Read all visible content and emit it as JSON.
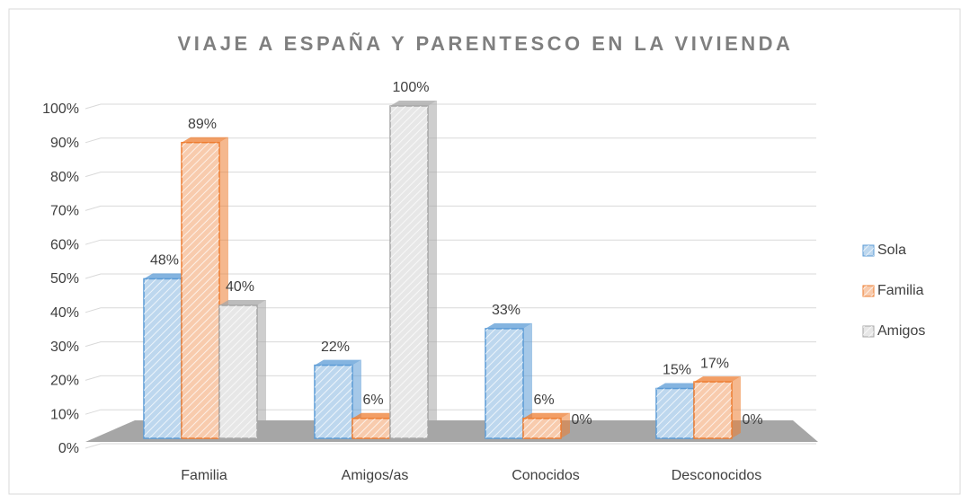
{
  "chart_data": {
    "type": "bar3d",
    "title": "VIAJE A ESPAÑA Y PARENTESCO EN LA VIVIENDA",
    "categories": [
      "Familia",
      "Amigos/as",
      "Conocidos",
      "Desconocidos"
    ],
    "series": [
      {
        "name": "Sola",
        "color": "#bdd7ee",
        "edgecolor": "#5b9bd5",
        "values": [
          48,
          22,
          33,
          15
        ],
        "value_labels": [
          "48%",
          "22%",
          "33%",
          "15%"
        ]
      },
      {
        "name": "Familia",
        "color": "#f8cbad",
        "edgecolor": "#ed7d31",
        "values": [
          89,
          6,
          6,
          17
        ],
        "value_labels": [
          "89%",
          "6%",
          "6%",
          "17%"
        ]
      },
      {
        "name": "Amigos",
        "color": "#e7e7e7",
        "edgecolor": "#a5a5a5",
        "values": [
          40,
          100,
          0,
          0
        ],
        "value_labels": [
          "40%",
          "100%",
          "0%",
          "0%"
        ]
      }
    ],
    "ylim": [
      0,
      100
    ],
    "yticks": [
      {
        "value": 0,
        "label": "0%"
      },
      {
        "value": 10,
        "label": "10%"
      },
      {
        "value": 20,
        "label": "20%"
      },
      {
        "value": 30,
        "label": "30%"
      },
      {
        "value": 40,
        "label": "40%"
      },
      {
        "value": 50,
        "label": "50%"
      },
      {
        "value": 60,
        "label": "60%"
      },
      {
        "value": 70,
        "label": "70%"
      },
      {
        "value": 80,
        "label": "80%"
      },
      {
        "value": 90,
        "label": "90%"
      },
      {
        "value": 100,
        "label": "100%"
      }
    ],
    "grid": true,
    "legend": "right"
  }
}
